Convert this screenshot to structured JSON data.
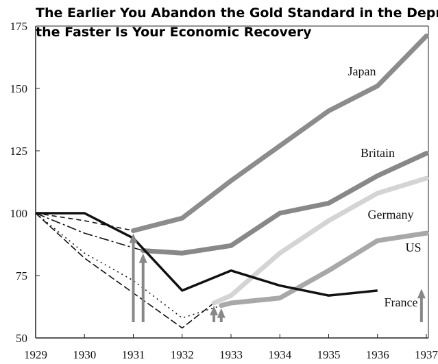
{
  "chart_data": {
    "type": "line",
    "title": [
      "The Earlier You Abandon the Gold Standard in the Depr",
      "the Faster Is Your Economic Recovery"
    ],
    "xlim": [
      1929,
      1937
    ],
    "xticks": [
      1929,
      1930,
      1931,
      1932,
      1933,
      1934,
      1935,
      1936,
      1937
    ],
    "ylim": [
      50,
      175
    ],
    "yticks": [
      50,
      75,
      100,
      125,
      150,
      175
    ],
    "pre_color": "#111111",
    "series": [
      {
        "name": "Japan",
        "color": "#8c8c8c",
        "pre_dash": "7 5",
        "abandoned": 1931,
        "x": [
          1929,
          1930,
          1931,
          1932,
          1933,
          1934,
          1935,
          1936,
          1937
        ],
        "values": [
          100,
          97,
          93,
          98,
          113,
          127,
          141,
          151,
          171
        ]
      },
      {
        "name": "Britain",
        "color": "#888888",
        "pre_dash": "14 4 3 4",
        "abandoned": 1931.2,
        "x": [
          1929,
          1930,
          1931.2,
          1932,
          1933,
          1934,
          1935,
          1936,
          1937
        ],
        "values": [
          100,
          92,
          85,
          84,
          87,
          100,
          104,
          115,
          124
        ]
      },
      {
        "name": "Germany",
        "color": "#d4d4d4",
        "pre_dash": "10 4",
        "abandoned": 1932.65,
        "x": [
          1929,
          1930,
          1931,
          1932,
          1932.65,
          1933,
          1934,
          1935,
          1936,
          1937
        ],
        "values": [
          100,
          82,
          68,
          54,
          64,
          67,
          84,
          97,
          108,
          114
        ]
      },
      {
        "name": "US",
        "color": "#a8a8a8",
        "pre_dash": "2 5",
        "abandoned": 1932.8,
        "x": [
          1929,
          1930,
          1931,
          1932,
          1932.8,
          1933,
          1934,
          1935,
          1936,
          1937
        ],
        "values": [
          100,
          84,
          73,
          58,
          63,
          64,
          66,
          77,
          89,
          92
        ]
      },
      {
        "name": "France",
        "color": "#8c8c8c",
        "pre_dash": "none",
        "abandoned": 1936.9,
        "x": [
          1929,
          1930,
          1931,
          1932,
          1933,
          1934,
          1935,
          1936,
          1937
        ],
        "values": [
          100,
          100,
          90,
          69,
          77,
          71,
          67,
          69,
          71
        ]
      }
    ]
  }
}
